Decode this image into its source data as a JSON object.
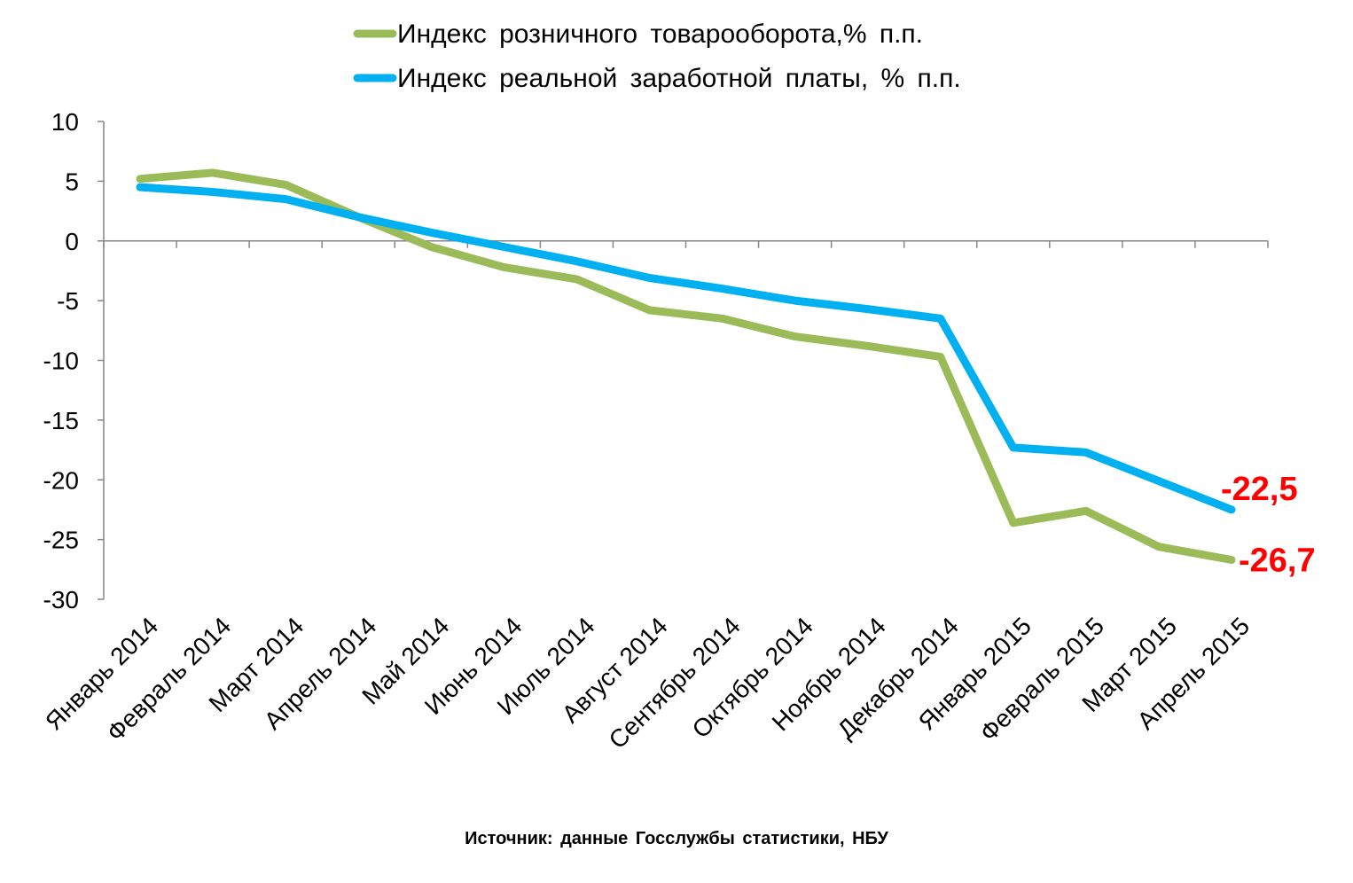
{
  "chart_data": {
    "type": "line",
    "categories": [
      "Январь 2014",
      "Февраль 2014",
      "Март 2014",
      "Апрель 2014",
      "Май 2014",
      "Июнь 2014",
      "Июль 2014",
      "Август 2014",
      "Сентябрь 2014",
      "Октябрь 2014",
      "Ноябрь 2014",
      "Декабрь 2014",
      "Январь 2015",
      "Февраль 2015",
      "Март 2015",
      "Апрель 2015"
    ],
    "series": [
      {
        "name": "Индекс розничного товарооборота,% п.п.",
        "color": "#9BBB59",
        "values": [
          5.2,
          5.7,
          4.7,
          2.0,
          -0.5,
          -2.2,
          -3.2,
          -5.8,
          -6.5,
          -8.0,
          -8.8,
          -9.7,
          -23.6,
          -22.6,
          -25.6,
          -26.7
        ],
        "end_label": "-26,7"
      },
      {
        "name": "Индекс реальной заработной платы, % п.п.",
        "color": "#00B0F0",
        "values": [
          4.5,
          4.1,
          3.5,
          2.0,
          0.7,
          -0.5,
          -1.7,
          -3.1,
          -4.0,
          -5.0,
          -5.7,
          -6.5,
          -17.3,
          -17.7,
          -20.1,
          -22.5
        ],
        "end_label": "-22,5"
      }
    ],
    "y_ticks": [
      "10",
      "5",
      "0",
      "-5",
      "-10",
      "-15",
      "-20",
      "-25",
      "-30"
    ],
    "ylim": [
      -30,
      10
    ],
    "end_label_color": "#FF0000",
    "legend_position": "top",
    "grid": false
  },
  "source_text": "Источник: данные Госслужбы статистики,  НБУ"
}
